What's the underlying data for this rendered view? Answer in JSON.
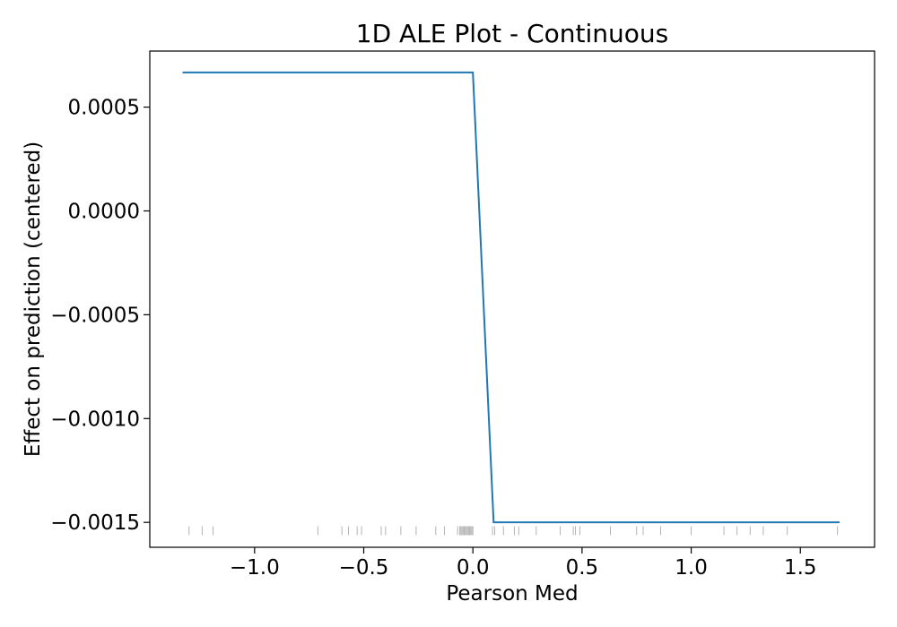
{
  "chart_data": {
    "type": "line",
    "title": "1D ALE Plot - Continuous",
    "xlabel": "Pearson Med",
    "ylabel": "Effect on prediction (centered)",
    "xlim": [
      -1.48,
      1.84
    ],
    "ylim": [
      -0.00162,
      0.00077
    ],
    "xticks": [
      -1.0,
      -0.5,
      0.0,
      0.5,
      1.0,
      1.5
    ],
    "xtick_labels": [
      "−1.0",
      "−0.5",
      "0.0",
      "0.5",
      "1.0",
      "1.5"
    ],
    "yticks": [
      0.0005,
      0.0,
      -0.0005,
      -0.001,
      -0.0015
    ],
    "ytick_labels": [
      "0.0005",
      "0.0000",
      "−0.0005",
      "−0.0010",
      "−0.0015"
    ],
    "grid": false,
    "series": [
      {
        "color": "#1f77b4",
        "x": [
          -1.33,
          0.0,
          0.095,
          1.68
        ],
        "y": [
          0.000667,
          0.000667,
          -0.0015,
          -0.0015
        ]
      }
    ],
    "rug": {
      "color": "#808080",
      "y": -0.00154,
      "x": [
        -1.3,
        -1.24,
        -1.19,
        -0.71,
        -0.6,
        -0.57,
        -0.53,
        -0.51,
        -0.42,
        -0.4,
        -0.33,
        -0.26,
        -0.17,
        -0.13,
        -0.07,
        -0.06,
        -0.055,
        -0.05,
        -0.045,
        -0.04,
        -0.035,
        -0.03,
        -0.025,
        -0.02,
        -0.015,
        -0.01,
        -0.005,
        0.0,
        0.09,
        0.1,
        0.14,
        0.19,
        0.21,
        0.29,
        0.4,
        0.46,
        0.47,
        0.49,
        0.63,
        0.75,
        0.78,
        0.86,
        1.0,
        1.15,
        1.21,
        1.27,
        1.33,
        1.44,
        1.67
      ]
    }
  }
}
